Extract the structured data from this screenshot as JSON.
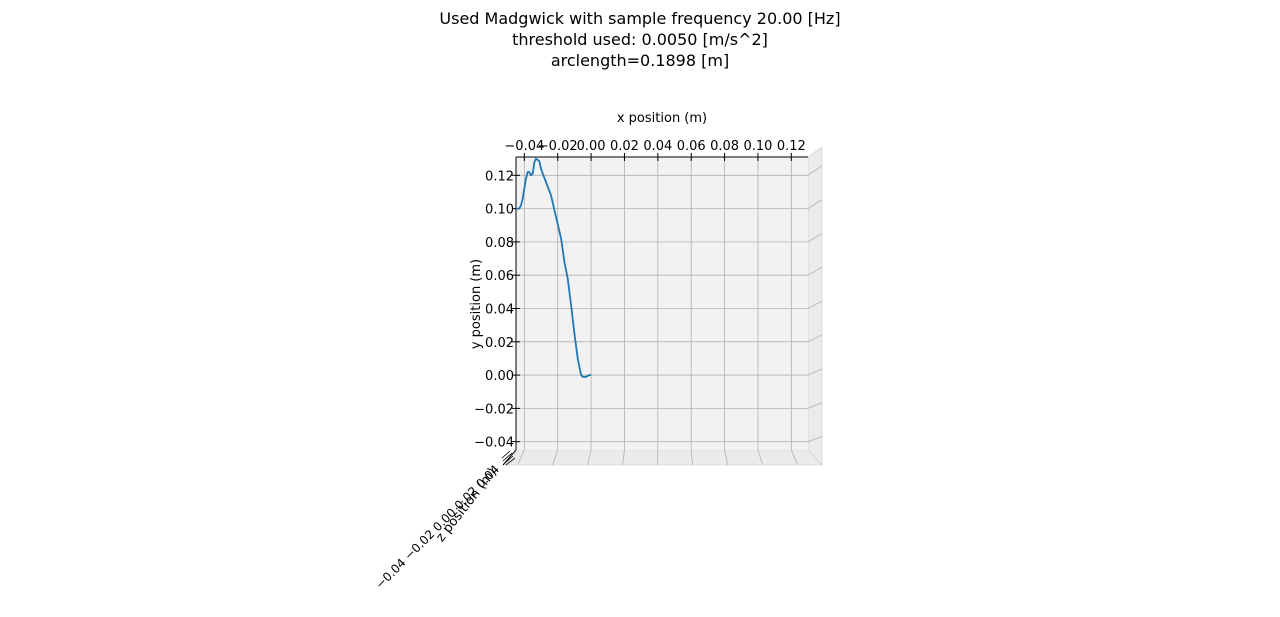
{
  "chart_data": {
    "type": "line",
    "projection": "3d",
    "view": "top-down (looking along z axis)",
    "title_lines": [
      "Used Madgwick with sample frequency 20.00 [Hz]",
      "threshold used: 0.0050 [m/s^2]",
      "arclength=0.1898 [m]"
    ],
    "xlabel": "x position (m)",
    "ylabel": "y position (m)",
    "zlabel": "z position (m)",
    "xlim": [
      -0.045,
      0.13
    ],
    "ylim": [
      -0.045,
      0.131
    ],
    "x_ticks": [
      -0.04,
      -0.02,
      0.0,
      0.02,
      0.04,
      0.06,
      0.08,
      0.1,
      0.12
    ],
    "x_tick_labels": [
      "−0.04",
      "−0.02",
      "0.00",
      "0.02",
      "0.04",
      "0.06",
      "0.08",
      "0.10",
      "0.12"
    ],
    "y_ticks": [
      -0.04,
      -0.02,
      0.0,
      0.02,
      0.04,
      0.06,
      0.08,
      0.1,
      0.12
    ],
    "y_tick_labels": [
      "−0.04",
      "−0.02",
      "0.00",
      "0.02",
      "0.04",
      "0.06",
      "0.08",
      "0.10",
      "0.12"
    ],
    "z_tick_labels_text": "−0.04 −0.02 0.00 0.02 0.04",
    "grid": true,
    "pane_color": "#f2f2f2",
    "grid_color": "#b0b0b0",
    "series": [
      {
        "color": "#1f77b4",
        "x": [
          0.0,
          -0.001,
          -0.003,
          -0.005,
          -0.006,
          -0.008,
          -0.01,
          -0.012,
          -0.014,
          -0.016,
          -0.018,
          -0.021,
          -0.024,
          -0.027,
          -0.029,
          -0.03,
          -0.031,
          -0.033,
          -0.034,
          -0.035,
          -0.036,
          -0.037,
          -0.038,
          -0.039,
          -0.04,
          -0.041,
          -0.042,
          -0.043,
          -0.044,
          -0.045
        ],
        "y": [
          0.0,
          0.0,
          -0.001,
          -0.001,
          0.0,
          0.01,
          0.025,
          0.042,
          0.058,
          0.068,
          0.082,
          0.095,
          0.108,
          0.116,
          0.121,
          0.124,
          0.1285,
          0.13,
          0.128,
          0.121,
          0.12,
          0.122,
          0.122,
          0.118,
          0.112,
          0.106,
          0.102,
          0.1,
          0.1,
          0.1
        ]
      }
    ]
  }
}
